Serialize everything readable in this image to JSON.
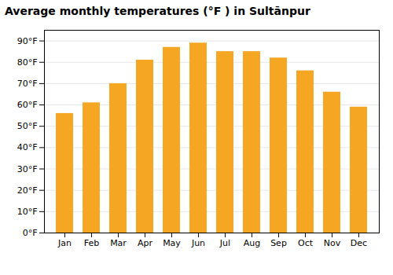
{
  "chart_data": {
    "type": "bar",
    "title": "Average monthly temperatures (°F ) in Sultānpur",
    "categories": [
      "Jan",
      "Feb",
      "Mar",
      "Apr",
      "May",
      "Jun",
      "Jul",
      "Aug",
      "Sep",
      "Oct",
      "Nov",
      "Dec"
    ],
    "values": [
      56,
      61,
      70,
      81,
      87,
      89,
      85,
      85,
      82,
      76,
      66,
      59
    ],
    "color": "#F5A623",
    "ylim": [
      0,
      95
    ],
    "yticks": [
      {
        "value": 0,
        "label": "0°F"
      },
      {
        "value": 10,
        "label": "10°F"
      },
      {
        "value": 20,
        "label": "20°F"
      },
      {
        "value": 30,
        "label": "30°F"
      },
      {
        "value": 40,
        "label": "40°F"
      },
      {
        "value": 50,
        "label": "50°F"
      },
      {
        "value": 60,
        "label": "60°F"
      },
      {
        "value": 70,
        "label": "70°F"
      },
      {
        "value": 80,
        "label": "80°F"
      },
      {
        "value": 90,
        "label": "90°F"
      }
    ],
    "grid": true
  }
}
